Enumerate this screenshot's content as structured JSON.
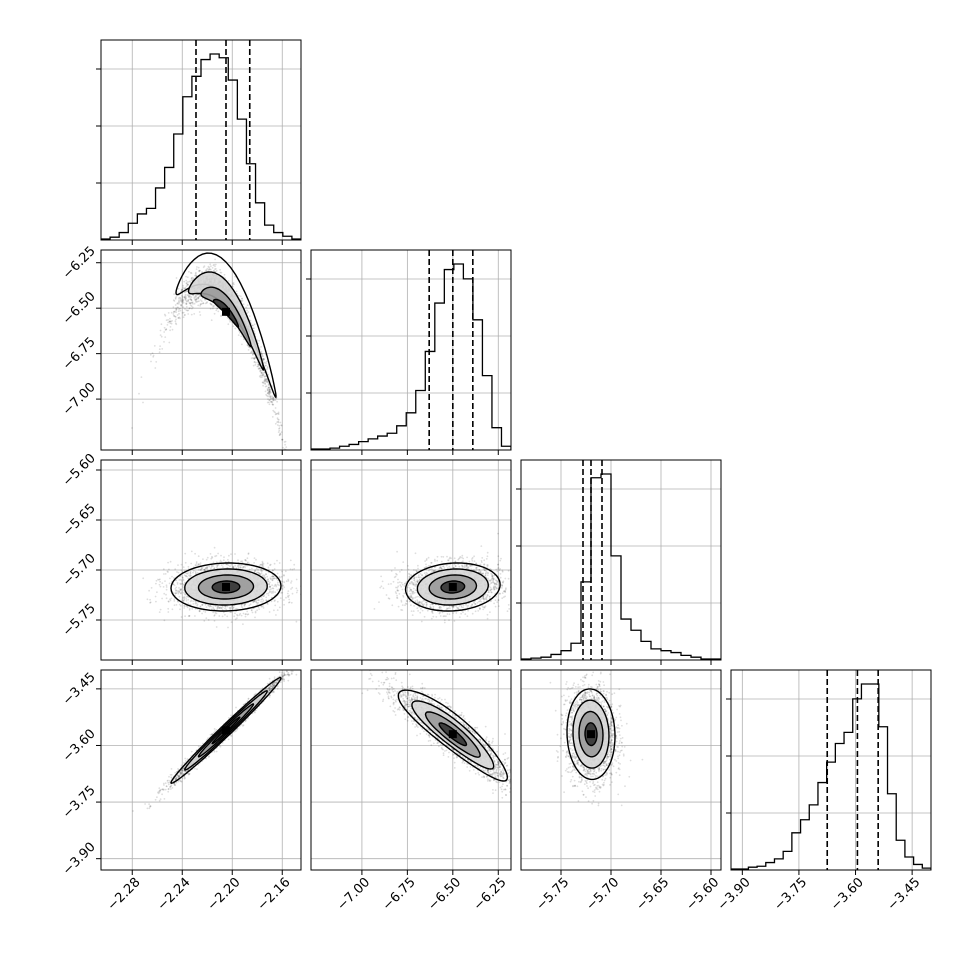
{
  "chart_data": {
    "type": "corner",
    "params": [
      {
        "id": "p1",
        "range": [
          -2.305,
          -2.145
        ],
        "ticks": [
          -2.28,
          -2.24,
          -2.2,
          -2.16
        ],
        "tick_labels": [
          "−2.28",
          "−2.24",
          "−2.20",
          "−2.16"
        ],
        "quantiles": [
          -2.229,
          -2.205,
          -2.186
        ],
        "hist": [
          0.005,
          0.015,
          0.04,
          0.09,
          0.14,
          0.17,
          0.28,
          0.39,
          0.57,
          0.77,
          0.88,
          0.97,
          1.0,
          0.98,
          0.86,
          0.65,
          0.41,
          0.2,
          0.08,
          0.04,
          0.02,
          0.005
        ]
      },
      {
        "id": "p2",
        "range": [
          -7.28,
          -6.18
        ],
        "ticks": [
          -7.0,
          -6.75,
          -6.5,
          -6.25
        ],
        "tick_labels": [
          "−7.00",
          "−6.75",
          "−6.50",
          "−6.25"
        ],
        "quantiles": [
          -6.63,
          -6.5,
          -6.39
        ],
        "hist": [
          0.005,
          0.005,
          0.01,
          0.02,
          0.03,
          0.045,
          0.06,
          0.075,
          0.09,
          0.13,
          0.2,
          0.32,
          0.53,
          0.79,
          0.97,
          1.0,
          0.92,
          0.7,
          0.4,
          0.12,
          0.02
        ]
      },
      {
        "id": "p3",
        "range": [
          -5.79,
          -5.59
        ],
        "ticks": [
          -5.75,
          -5.7,
          -5.65,
          -5.6
        ],
        "tick_labels": [
          "−5.75",
          "−5.70",
          "−5.65",
          "−5.60"
        ],
        "quantiles": [
          -5.728,
          -5.72,
          -5.709
        ],
        "hist": [
          0.005,
          0.01,
          0.015,
          0.03,
          0.05,
          0.09,
          0.42,
          0.98,
          1.0,
          0.56,
          0.22,
          0.16,
          0.1,
          0.06,
          0.05,
          0.04,
          0.025,
          0.015,
          0.005,
          0.005
        ]
      },
      {
        "id": "p4",
        "range": [
          -3.93,
          -3.4
        ],
        "ticks": [
          -3.9,
          -3.75,
          -3.6,
          -3.45
        ],
        "tick_labels": [
          "−3.90",
          "−3.75",
          "−3.60",
          "−3.45"
        ],
        "quantiles": [
          -3.675,
          -3.595,
          -3.54
        ],
        "hist": [
          0.005,
          0.005,
          0.015,
          0.02,
          0.04,
          0.06,
          0.1,
          0.2,
          0.27,
          0.35,
          0.47,
          0.58,
          0.68,
          0.74,
          0.92,
          1.0,
          1.0,
          0.77,
          0.41,
          0.16,
          0.07,
          0.03,
          0.01
        ]
      }
    ],
    "pairs": [
      {
        "x": "p1",
        "y": "p2",
        "center": [
          -2.205,
          -6.52
        ],
        "sd": [
          0.02,
          0.15
        ],
        "rho": -0.95,
        "curve": -4.0,
        "n": 2600
      },
      {
        "x": "p1",
        "y": "p3",
        "center": [
          -2.205,
          -5.717
        ],
        "sd": [
          0.022,
          0.012
        ],
        "rho": 0.05,
        "curve": 0.0,
        "n": 2200
      },
      {
        "x": "p2",
        "y": "p3",
        "center": [
          -6.5,
          -5.717
        ],
        "sd": [
          0.13,
          0.012
        ],
        "rho": 0.1,
        "curve": 0.0,
        "n": 2200
      },
      {
        "x": "p1",
        "y": "p4",
        "center": [
          -2.205,
          -3.56
        ],
        "sd": [
          0.022,
          0.07
        ],
        "rho": 0.99,
        "curve": 0.0,
        "n": 2600
      },
      {
        "x": "p2",
        "y": "p4",
        "center": [
          -6.5,
          -3.57
        ],
        "sd": [
          0.15,
          0.06
        ],
        "rho": -0.9,
        "curve": -0.35,
        "n": 2600
      },
      {
        "x": "p3",
        "y": "p4",
        "center": [
          -5.72,
          -3.57
        ],
        "sd": [
          0.012,
          0.06
        ],
        "rho": -0.05,
        "curve": 0.0,
        "n": 2400
      }
    ],
    "grid": true,
    "quantile_style": "dashed"
  }
}
